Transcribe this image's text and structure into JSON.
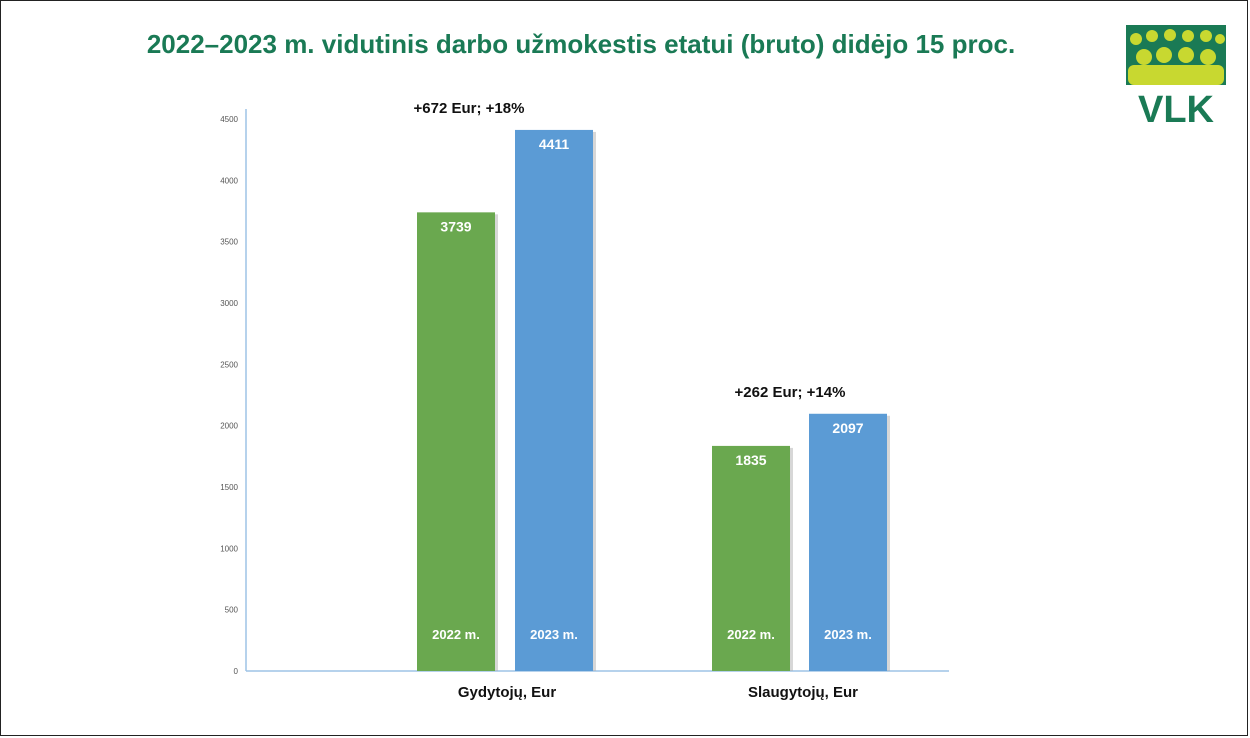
{
  "title": "2022–2023 m. vidutinis darbo užmokestis etatui (bruto) didėjo 15 proc.",
  "logo": {
    "text": "VLK",
    "icon": "vlk-people-logo",
    "green": "#1a7a55",
    "yellow": "#c8d830"
  },
  "colors": {
    "series_2022": "#6aa84f",
    "series_2023": "#5b9bd5",
    "axis": "#9dc3e6",
    "title": "#1a7a55"
  },
  "chart_data": {
    "type": "bar",
    "categories": [
      "Gydytojų, Eur",
      "Slaugytojų, Eur"
    ],
    "series": [
      {
        "name": "2022 m.",
        "values": [
          3739,
          1835
        ]
      },
      {
        "name": "2023 m.",
        "values": [
          4411,
          2097
        ]
      }
    ],
    "change_labels": [
      "+672 Eur; +18%",
      "+262 Eur; +14%"
    ],
    "ylim": [
      0,
      4500
    ],
    "yticks": [
      0,
      500,
      1000,
      1500,
      2000,
      2500,
      3000,
      3500,
      4000,
      4500
    ],
    "grid": false,
    "legend": "none"
  }
}
